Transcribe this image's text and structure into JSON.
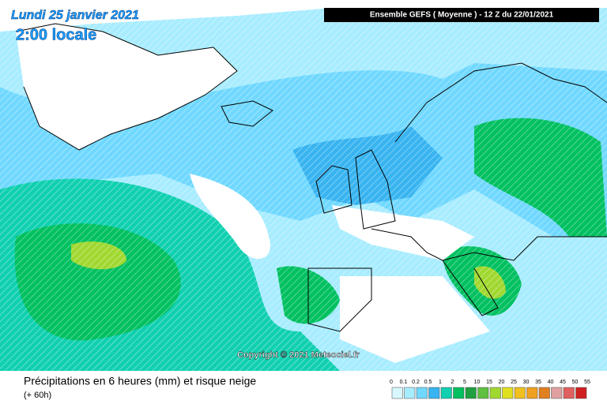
{
  "header": {
    "date": "Lundi 25 janvier 2021",
    "time": "2:00 locale",
    "run": "Ensemble GEFS  ( Moyenne )  -  12 Z du 22/01/2021"
  },
  "copyright": "Copyright © 2021 Meteociel.fr",
  "footer": {
    "title": "Précipitations en 6 heures (mm) et risque neige",
    "lead": "(+ 60h)"
  },
  "legend": {
    "labels": [
      0,
      0.1,
      0.2,
      0.5,
      1,
      2,
      5,
      10,
      15,
      20,
      25,
      30,
      35,
      40,
      45,
      50,
      55
    ],
    "colors": [
      "#ffffff",
      "#d8f8ff",
      "#a8ecff",
      "#70d8ff",
      "#38b4f0",
      "#10d0b0",
      "#00c060",
      "#20a040",
      "#60c040",
      "#a0d830",
      "#e0e020",
      "#f0c020",
      "#f0a020",
      "#e08020",
      "#e0a0a0",
      "#e06060",
      "#d02020"
    ]
  }
}
